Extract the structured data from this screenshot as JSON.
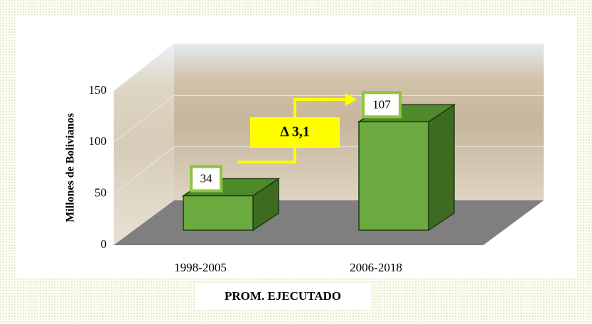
{
  "chart_data": {
    "type": "bar",
    "ylabel": "Millones de Bolivianos",
    "xlabel": "PROM. EJECUTADO",
    "categories": [
      "1998-2005",
      "2006-2018"
    ],
    "values": [
      34,
      107
    ],
    "color": "#6aaa3f",
    "ylim": [
      0,
      150
    ],
    "yticks": [
      0,
      50,
      100,
      150
    ],
    "grid": true,
    "annotation": "Δ 3,1"
  }
}
